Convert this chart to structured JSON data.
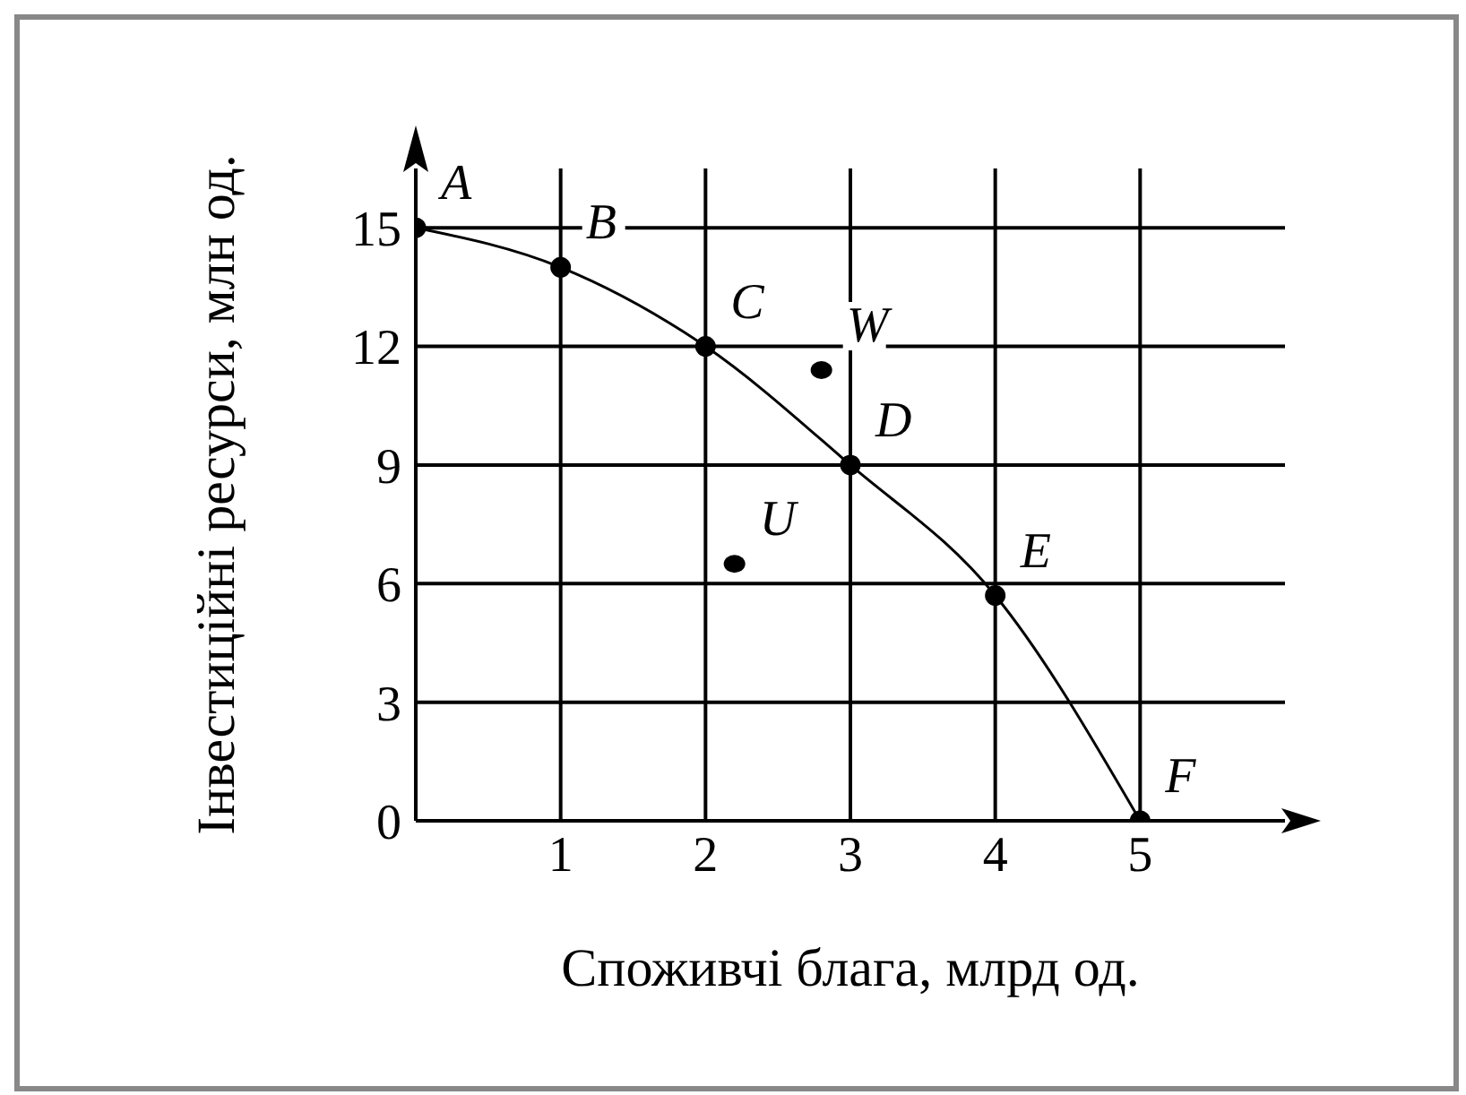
{
  "chart_data": {
    "type": "line",
    "xlabel": "Споживчі блага, млрд од.",
    "ylabel": "Інвестиційні ресурси, млн од.",
    "xlim": [
      0,
      6
    ],
    "ylim": [
      0,
      16.5
    ],
    "xticks": [
      1,
      2,
      3,
      4,
      5
    ],
    "yticks": [
      0,
      3,
      6,
      9,
      12,
      15
    ],
    "grid": true,
    "marker": "circle",
    "line_style": "solid",
    "series": [
      {
        "color": "#000000",
        "x": [
          0,
          1,
          2,
          3,
          4,
          5
        ],
        "values": [
          15,
          14,
          12,
          9,
          5.7,
          0
        ]
      },
      {
        "type": "scatter",
        "color": "#000000",
        "x": [
          2.8,
          2.2
        ],
        "values": [
          11.4,
          6.5
        ]
      }
    ],
    "annotations": [
      {
        "text": "A",
        "x": 0,
        "y": 15
      },
      {
        "text": "B",
        "x": 1,
        "y": 14
      },
      {
        "text": "C",
        "x": 2,
        "y": 12
      },
      {
        "text": "D",
        "x": 3,
        "y": 9
      },
      {
        "text": "E",
        "x": 4,
        "y": 5.7
      },
      {
        "text": "F",
        "x": 5,
        "y": 0
      },
      {
        "text": "W",
        "x": 2.8,
        "y": 11.4
      },
      {
        "text": "U",
        "x": 2.2,
        "y": 6.5
      }
    ]
  }
}
